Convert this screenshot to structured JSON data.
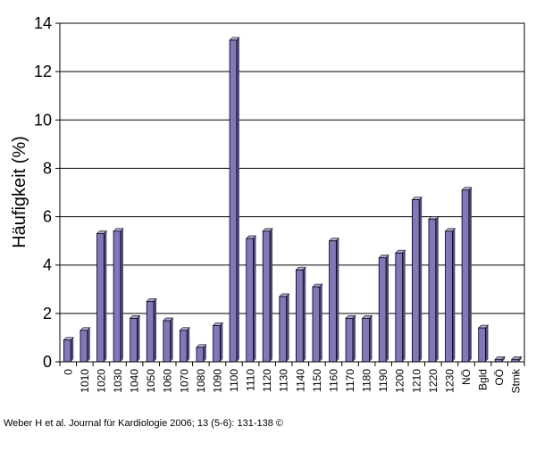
{
  "citation": "Weber H et al. Journal für Kardiologie 2006; 13 (5-6): 131-138 ©",
  "chart_data": {
    "type": "bar",
    "ylabel": "Häufigkeit (%)",
    "xlabel": "",
    "ylim": [
      0,
      14
    ],
    "yticks": [
      0,
      2,
      4,
      6,
      8,
      10,
      12,
      14
    ],
    "grid": true,
    "categories": [
      "0",
      "1010",
      "1020",
      "1030",
      "1040",
      "1050",
      "1060",
      "1070",
      "1080",
      "1090",
      "1100",
      "1110",
      "1120",
      "1130",
      "1140",
      "1150",
      "1160",
      "1170",
      "1180",
      "1190",
      "1200",
      "1210",
      "1220",
      "1230",
      "NÖ",
      "Bgld",
      "OÖ",
      "Stmk"
    ],
    "values": [
      0.9,
      1.3,
      5.3,
      5.4,
      1.8,
      2.5,
      1.7,
      1.3,
      0.6,
      1.5,
      13.3,
      5.1,
      5.4,
      2.7,
      3.8,
      3.1,
      5.0,
      1.8,
      1.8,
      4.3,
      4.5,
      6.7,
      5.9,
      5.4,
      7.1,
      1.4,
      0.1,
      0.1
    ],
    "colors": {
      "bar": "#8079b8",
      "bar_side": "#4b4680",
      "bar_top": "#b0abd8",
      "grid": "#000000"
    }
  }
}
